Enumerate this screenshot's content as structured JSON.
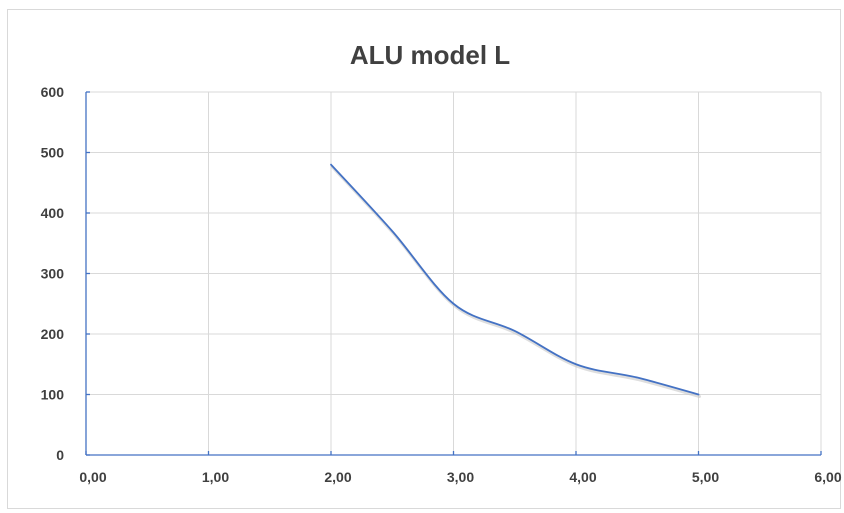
{
  "chart_data": {
    "type": "line",
    "title": "ALU model L",
    "xlabel": "",
    "ylabel": "",
    "xlim": [
      0,
      6
    ],
    "ylim": [
      0,
      600
    ],
    "x_ticks": [
      0,
      1,
      2,
      3,
      4,
      5,
      6
    ],
    "x_tick_labels": [
      "0,00",
      "1,00",
      "2,00",
      "3,00",
      "4,00",
      "5,00",
      "6,00"
    ],
    "y_ticks": [
      0,
      100,
      200,
      300,
      400,
      500,
      600
    ],
    "y_tick_labels": [
      "0",
      "100",
      "200",
      "300",
      "400",
      "500",
      "600"
    ],
    "grid": true,
    "smooth": true,
    "series": [
      {
        "x": [
          2,
          2.5,
          3,
          3.5,
          4,
          4.5,
          5
        ],
        "y": [
          480,
          370,
          250,
          205,
          150,
          128,
          100
        ],
        "color": "#4472c4"
      }
    ]
  }
}
